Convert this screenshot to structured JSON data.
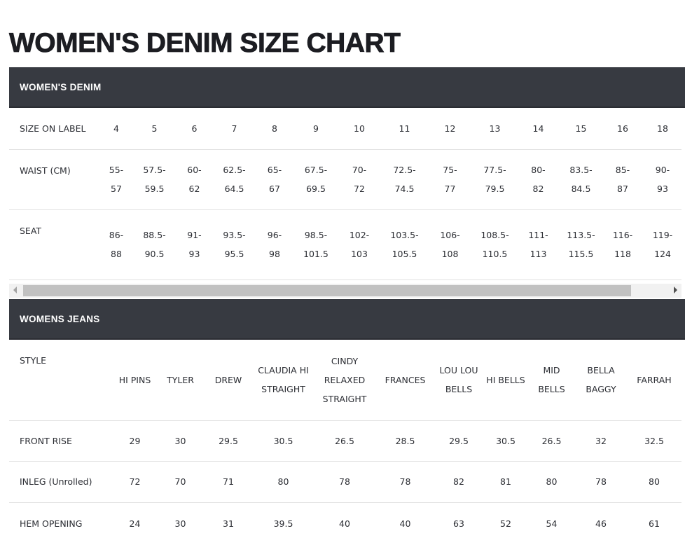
{
  "title": "WOMEN'S DENIM SIZE CHART",
  "denim": {
    "heading": "WOMEN'S DENIM",
    "rows": [
      {
        "label": "SIZE ON LABEL",
        "cells": [
          "4",
          "5",
          "6",
          "7",
          "8",
          "9",
          "10",
          "11",
          "12",
          "13",
          "14",
          "15",
          "16",
          "18"
        ]
      },
      {
        "label": "WAIST (CM)",
        "cells": [
          "55-57",
          "57.5-59.5",
          "60-62",
          "62.5-64.5",
          "65-67",
          "67.5-69.5",
          "70-72",
          "72.5-74.5",
          "75-77",
          "77.5-79.5",
          "80-82",
          "83.5-84.5",
          "85-87",
          "90-93"
        ]
      },
      {
        "label": "SEAT",
        "cells": [
          "86-88",
          "88.5-90.5",
          "91-93",
          "93.5-95.5",
          "96-98",
          "98.5-101.5",
          "102-103",
          "103.5-105.5",
          "106-108",
          "108.5-110.5",
          "111-113",
          "113.5-115.5",
          "116-118",
          "119-124"
        ]
      }
    ]
  },
  "jeans": {
    "heading": "WOMENS JEANS",
    "rows": [
      {
        "label": "STYLE",
        "cells": [
          "HI PINS",
          "TYLER",
          "DREW",
          "CLAUDIA HI STRAIGHT",
          "CINDY RELAXED STRAIGHT",
          "FRANCES",
          "LOU LOU BELLS",
          "HI BELLS",
          "MID BELLS",
          "BELLA BAGGY",
          "FARRAH"
        ]
      },
      {
        "label": "FRONT RISE",
        "cells": [
          "29",
          "30",
          "29.5",
          "30.5",
          "26.5",
          "28.5",
          "29.5",
          "30.5",
          "26.5",
          "32",
          "32.5"
        ]
      },
      {
        "label": "INLEG (Unrolled)",
        "cells": [
          "72",
          "70",
          "71",
          "80",
          "78",
          "78",
          "82",
          "81",
          "80",
          "78",
          "80"
        ]
      },
      {
        "label": "HEM OPENING",
        "cells": [
          "24",
          "30",
          "31",
          "39.5",
          "40",
          "40",
          "63",
          "52",
          "54",
          "46",
          "61"
        ]
      }
    ]
  },
  "colors": {
    "header_bar": "#373a41"
  }
}
